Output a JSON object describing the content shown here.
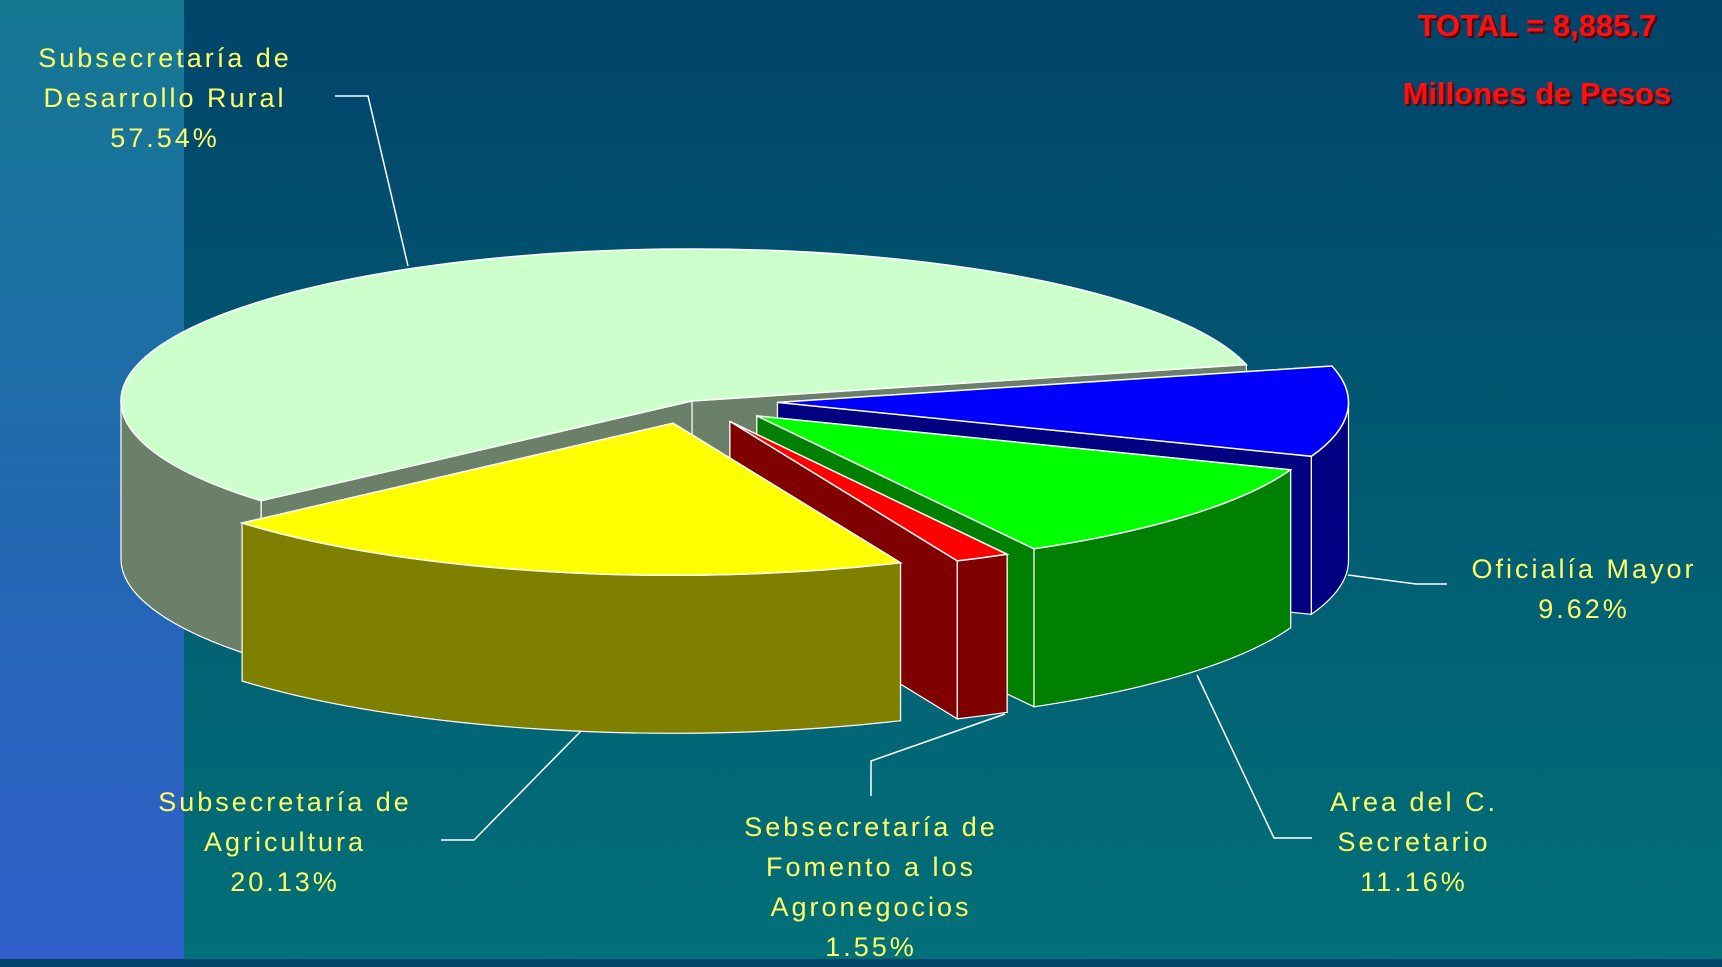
{
  "chart_data": {
    "type": "pie",
    "title": "TOTAL = 8,885.7",
    "subtitle": "Millones de Pesos",
    "categories": [
      "Subsecretaría de Desarrollo Rural",
      "Oficialía Mayor",
      "Area del C. Secretario",
      "Sebsecretaría de Fomento a los Agronegocios",
      "Subsecretaría de Agricultura"
    ],
    "values": [
      57.54,
      9.62,
      11.16,
      1.55,
      20.13
    ],
    "value_labels": [
      "57.54%",
      "9.62%",
      "11.16%",
      "1.55%",
      "20.13%"
    ],
    "colors": [
      "#ccffcc",
      "#0000ff",
      "#00ff00",
      "#ff0000",
      "#ffff00"
    ],
    "side_colors": [
      "#6b8068",
      "#000080",
      "#008000",
      "#800000",
      "#808000"
    ]
  }
}
